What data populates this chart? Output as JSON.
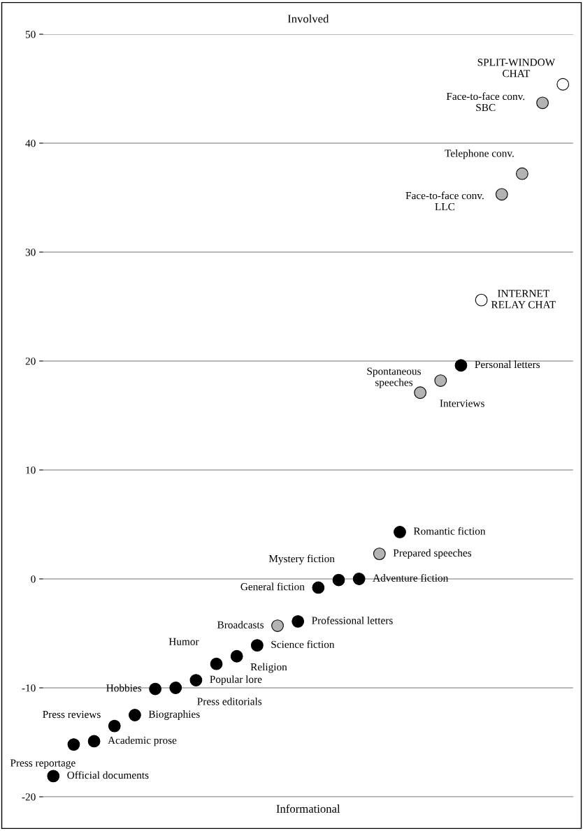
{
  "chart_data": {
    "type": "scatter",
    "title": "Involved",
    "xlabel": "Informational",
    "categories": [
      null,
      null,
      null,
      null,
      null,
      null,
      null,
      null,
      null,
      null,
      null,
      null,
      null,
      null,
      null,
      null,
      null,
      null,
      null,
      null,
      null,
      null,
      null,
      null,
      null,
      null
    ],
    "series": [
      {
        "values": [
          -18.1,
          -15.2,
          -14.9,
          -13.5,
          -12.5,
          -10.1,
          -10.0,
          -9.3,
          -7.8,
          -7.1,
          -6.1,
          -4.3,
          -3.9,
          -0.8,
          -0.1,
          0.0,
          2.3,
          4.3,
          17.1,
          18.2,
          19.6,
          25.6,
          35.3,
          37.2,
          43.7,
          45.4
        ],
        "colors": [
          "#000000",
          "#000000",
          "#000000",
          "#000000",
          "#000000",
          "#000000",
          "#000000",
          "#000000",
          "#000000",
          "#000000",
          "#000000",
          "#b3b3b3",
          "#000000",
          "#000000",
          "#000000",
          "#000000",
          "#b3b3b3",
          "#000000",
          "#b3b3b3",
          "#b3b3b3",
          "#000000",
          "#ffffff",
          "#b3b3b3",
          "#b3b3b3",
          "#b3b3b3",
          "#ffffff"
        ],
        "value_labels": [
          "Official documents",
          "Press reportage",
          "Academic prose",
          "Press reviews",
          "Biographies",
          "Hobbies",
          "Press editorials",
          "Popular lore",
          "Humor",
          "Religion",
          "Science fiction",
          "Broadcasts",
          "Professional letters",
          "General fiction",
          "Mystery fiction",
          "Adventure fiction",
          "Prepared speeches",
          "Romantic fiction",
          "Interviews",
          "Spontaneous\nspeeches",
          "Personal letters",
          "INTERNET\nRELAY CHAT",
          "Face-to-face conv.\nLLC",
          "Telephone conv.",
          "Face-to-face conv.\nSBC",
          "SPLIT-WINDOW\nCHAT"
        ]
      }
    ],
    "ylim": [
      -20,
      50
    ],
    "yticks": [
      -20,
      -10,
      0,
      10,
      20,
      30,
      40,
      50
    ],
    "grid": "y",
    "marker": "circle",
    "tick_labels": "y"
  }
}
